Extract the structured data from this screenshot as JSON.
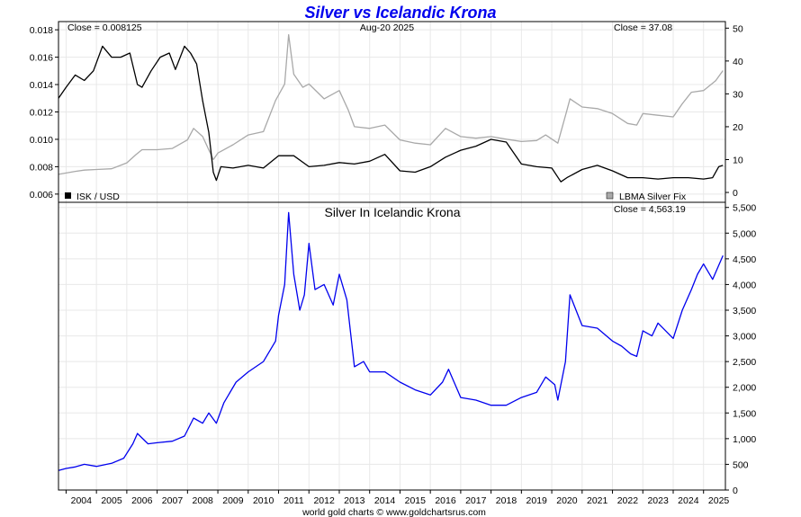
{
  "title": "Silver vs Icelandic Krona",
  "footer": "world gold charts © www.goldchartsrus.com",
  "colors": {
    "title": "#0000ee",
    "isk": "#000000",
    "silver": "#a9a9a9",
    "ratio": "#0000ee",
    "grid": "#e8e8e8",
    "frame": "#000000"
  },
  "chart_data": [
    {
      "type": "line",
      "title": "",
      "date_label": "Aug-20 2025",
      "left_close_label": "Close = 0.008125",
      "right_close_label": "Close = 37.08",
      "legend_left": "ISK / USD",
      "legend_right": "LBMA Silver Fix",
      "legend_placement": "bottom-left / bottom-right",
      "grid": true,
      "x_range": [
        2003.75,
        2025.72
      ],
      "y_left_range": [
        0.0054,
        0.0186
      ],
      "y_right_range": [
        -3,
        52
      ],
      "y_left_ticks": [
        "0.006",
        "0.008",
        "0.010",
        "0.012",
        "0.014",
        "0.016",
        "0.018"
      ],
      "y_right_ticks": [
        "0",
        "10",
        "20",
        "30",
        "40",
        "50"
      ],
      "series": [
        {
          "name": "ISK / USD",
          "axis": "left",
          "x": [
            2003.75,
            2004.0,
            2004.3,
            2004.6,
            2004.9,
            2005.2,
            2005.5,
            2005.8,
            2006.1,
            2006.35,
            2006.5,
            2006.8,
            2007.1,
            2007.4,
            2007.6,
            2007.9,
            2008.1,
            2008.3,
            2008.5,
            2008.7,
            2008.85,
            2008.95,
            2009.1,
            2009.5,
            2010.0,
            2010.5,
            2011.0,
            2011.5,
            2012.0,
            2012.5,
            2013.0,
            2013.5,
            2014.0,
            2014.5,
            2015.0,
            2015.5,
            2016.0,
            2016.5,
            2017.0,
            2017.5,
            2018.0,
            2018.5,
            2019.0,
            2019.5,
            2020.0,
            2020.3,
            2020.5,
            2021.0,
            2021.5,
            2022.0,
            2022.5,
            2023.0,
            2023.5,
            2024.0,
            2024.5,
            2025.0,
            2025.3,
            2025.5,
            2025.64
          ],
          "y": [
            0.013,
            0.0138,
            0.0147,
            0.0143,
            0.015,
            0.0168,
            0.016,
            0.016,
            0.0163,
            0.014,
            0.0138,
            0.015,
            0.016,
            0.0163,
            0.0151,
            0.0168,
            0.0163,
            0.0155,
            0.0128,
            0.0105,
            0.0076,
            0.007,
            0.008,
            0.0079,
            0.0081,
            0.0079,
            0.0088,
            0.0088,
            0.008,
            0.0081,
            0.0083,
            0.0082,
            0.0084,
            0.0089,
            0.0077,
            0.0076,
            0.008,
            0.0087,
            0.0092,
            0.0095,
            0.01,
            0.0098,
            0.0082,
            0.008,
            0.0079,
            0.0069,
            0.0072,
            0.0078,
            0.0081,
            0.0077,
            0.0072,
            0.0072,
            0.0071,
            0.0072,
            0.0072,
            0.0071,
            0.0072,
            0.008,
            0.0081
          ]
        },
        {
          "name": "LBMA Silver Fix",
          "axis": "right",
          "x": [
            2003.75,
            2004.3,
            2004.6,
            2005.0,
            2005.5,
            2006.0,
            2006.3,
            2006.5,
            2007.0,
            2007.5,
            2008.0,
            2008.2,
            2008.5,
            2008.85,
            2009.0,
            2009.5,
            2010.0,
            2010.5,
            2010.9,
            2011.2,
            2011.33,
            2011.5,
            2011.8,
            2012.0,
            2012.5,
            2013.0,
            2013.3,
            2013.5,
            2014.0,
            2014.5,
            2015.0,
            2015.5,
            2016.0,
            2016.5,
            2017.0,
            2017.5,
            2018.0,
            2018.5,
            2019.0,
            2019.5,
            2019.8,
            2020.2,
            2020.5,
            2020.6,
            2021.0,
            2021.5,
            2022.0,
            2022.5,
            2022.8,
            2023.0,
            2023.5,
            2024.0,
            2024.3,
            2024.6,
            2025.0,
            2025.4,
            2025.64
          ],
          "y": [
            5.5,
            6.4,
            6.8,
            7.0,
            7.2,
            9.0,
            11.5,
            13.0,
            13.0,
            13.4,
            16.0,
            19.5,
            17.0,
            10.0,
            12.0,
            14.5,
            17.5,
            18.5,
            28.0,
            33.0,
            48.0,
            36.0,
            32.0,
            33.0,
            28.5,
            31.0,
            25.0,
            20.0,
            19.5,
            20.5,
            16.0,
            15.0,
            14.5,
            19.5,
            17.0,
            16.5,
            17.0,
            16.2,
            15.5,
            15.8,
            17.5,
            15.0,
            25.0,
            28.5,
            26.0,
            25.5,
            24.0,
            21.0,
            20.5,
            24.0,
            23.5,
            23.0,
            27.0,
            30.5,
            31.0,
            34.0,
            37.08
          ]
        }
      ]
    },
    {
      "type": "line",
      "title": "Silver In Icelandic Krona",
      "close_label": "Close = 4,563.19",
      "grid": true,
      "x_range": [
        2003.75,
        2025.72
      ],
      "y_range": [
        0,
        5600
      ],
      "y_ticks": [
        "0",
        "500",
        "1,000",
        "1,500",
        "2,000",
        "2,500",
        "3,000",
        "3,500",
        "4,000",
        "4,500",
        "5,000",
        "5,500"
      ],
      "x_ticks": [
        "2004",
        "2005",
        "2006",
        "2007",
        "2008",
        "2009",
        "2010",
        "2011",
        "2012",
        "2013",
        "2014",
        "2015",
        "2016",
        "2017",
        "2018",
        "2019",
        "2020",
        "2021",
        "2022",
        "2023",
        "2024",
        "2025"
      ],
      "series": [
        {
          "name": "",
          "x": [
            2003.75,
            2004.0,
            2004.3,
            2004.6,
            2005.0,
            2005.5,
            2005.9,
            2006.2,
            2006.35,
            2006.7,
            2007.0,
            2007.5,
            2007.9,
            2008.2,
            2008.5,
            2008.7,
            2008.95,
            2009.2,
            2009.6,
            2010.0,
            2010.5,
            2010.9,
            2011.0,
            2011.2,
            2011.33,
            2011.5,
            2011.7,
            2011.85,
            2012.0,
            2012.2,
            2012.5,
            2012.8,
            2013.0,
            2013.25,
            2013.5,
            2013.8,
            2014.0,
            2014.5,
            2015.0,
            2015.5,
            2016.0,
            2016.4,
            2016.6,
            2017.0,
            2017.5,
            2018.0,
            2018.5,
            2019.0,
            2019.5,
            2019.8,
            2020.1,
            2020.2,
            2020.45,
            2020.6,
            2021.0,
            2021.5,
            2022.0,
            2022.3,
            2022.6,
            2022.8,
            2023.0,
            2023.3,
            2023.5,
            2024.0,
            2024.3,
            2024.6,
            2024.8,
            2025.0,
            2025.3,
            2025.64
          ],
          "y": [
            380,
            420,
            450,
            500,
            460,
            520,
            620,
            900,
            1100,
            900,
            920,
            950,
            1050,
            1400,
            1300,
            1500,
            1300,
            1700,
            2100,
            2300,
            2500,
            2900,
            3400,
            4000,
            5400,
            4200,
            3500,
            3800,
            4800,
            3900,
            4000,
            3600,
            4200,
            3700,
            2400,
            2500,
            2300,
            2300,
            2100,
            1950,
            1850,
            2100,
            2350,
            1800,
            1750,
            1650,
            1650,
            1800,
            1900,
            2200,
            2050,
            1750,
            2500,
            3800,
            3200,
            3150,
            2900,
            2800,
            2650,
            2600,
            3100,
            3000,
            3250,
            2950,
            3500,
            3900,
            4200,
            4400,
            4100,
            4563.19
          ]
        }
      ]
    }
  ]
}
